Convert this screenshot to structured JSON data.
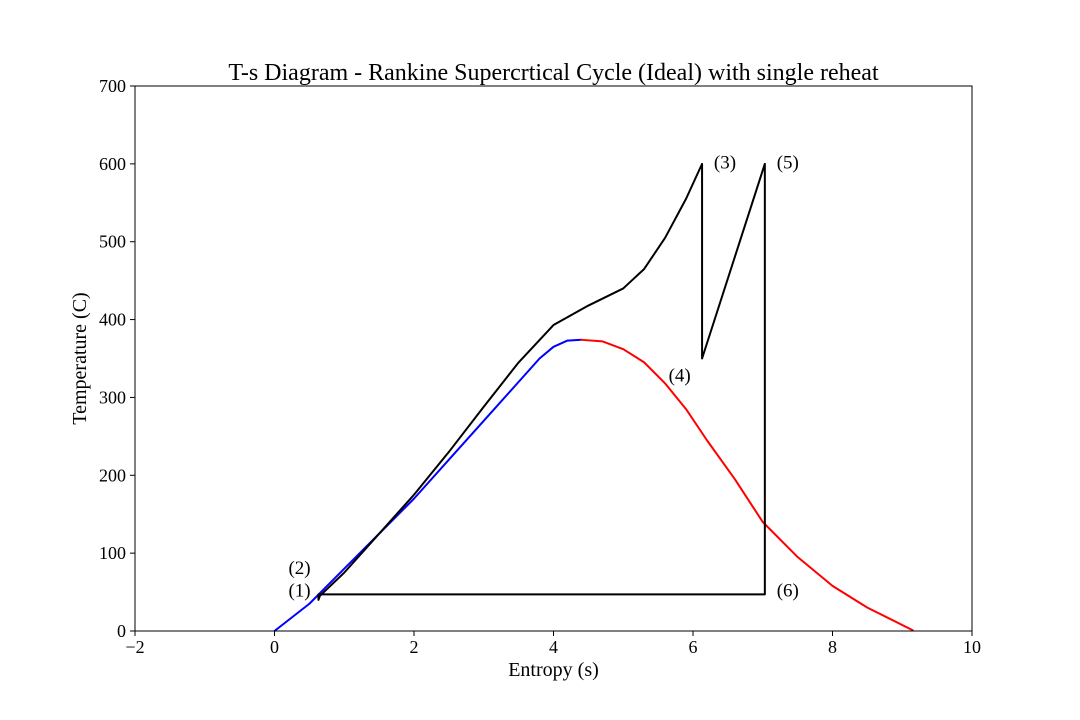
{
  "chart_data": {
    "type": "line",
    "title": "T-s Diagram - Rankine Supercrtical Cycle (Ideal) with single reheat",
    "xlabel": "Entropy (s)",
    "ylabel": "Temperature (C)",
    "xlim": [
      -2,
      10
    ],
    "ylim": [
      0,
      700
    ],
    "xticks": [
      "−2",
      "0",
      "2",
      "4",
      "6",
      "8",
      "10"
    ],
    "xtick_values": [
      -2,
      0,
      2,
      4,
      6,
      8,
      10
    ],
    "yticks": [
      "0",
      "100",
      "200",
      "300",
      "400",
      "500",
      "600",
      "700"
    ],
    "ytick_values": [
      0,
      100,
      200,
      300,
      400,
      500,
      600,
      700
    ],
    "grid": false,
    "series": [
      {
        "color": "#0000ff",
        "points": [
          [
            0,
            0
          ],
          [
            0.5,
            35
          ],
          [
            1.0,
            80
          ],
          [
            1.5,
            125
          ],
          [
            2.0,
            170
          ],
          [
            2.5,
            220
          ],
          [
            3.0,
            270
          ],
          [
            3.5,
            320
          ],
          [
            3.8,
            350
          ],
          [
            4.0,
            365
          ],
          [
            4.2,
            373
          ],
          [
            4.4,
            374
          ]
        ]
      },
      {
        "color": "#ff0000",
        "points": [
          [
            4.4,
            374
          ],
          [
            4.7,
            372
          ],
          [
            5.0,
            362
          ],
          [
            5.3,
            345
          ],
          [
            5.6,
            318
          ],
          [
            5.9,
            285
          ],
          [
            6.2,
            245
          ],
          [
            6.6,
            195
          ],
          [
            7.0,
            140
          ],
          [
            7.5,
            95
          ],
          [
            8.0,
            58
          ],
          [
            8.5,
            30
          ],
          [
            9.15,
            1
          ]
        ]
      },
      {
        "color": "#000000",
        "points": [
          [
            0.63,
            47
          ],
          [
            0.63,
            40
          ],
          [
            0.65,
            45
          ],
          [
            1.0,
            75
          ],
          [
            1.5,
            125
          ],
          [
            2.0,
            175
          ],
          [
            2.5,
            230
          ],
          [
            3.0,
            288
          ],
          [
            3.5,
            345
          ],
          [
            4.0,
            393
          ],
          [
            4.5,
            418
          ],
          [
            5.0,
            440
          ],
          [
            5.3,
            465
          ],
          [
            5.6,
            505
          ],
          [
            5.9,
            555
          ],
          [
            6.13,
            600
          ],
          [
            6.13,
            350
          ],
          [
            7.03,
            600
          ],
          [
            7.03,
            47
          ],
          [
            0.63,
            47
          ]
        ]
      }
    ],
    "annotations": [
      {
        "text": "(1)",
        "x": 0.2,
        "y": 52
      },
      {
        "text": "(2)",
        "x": 0.2,
        "y": 81
      },
      {
        "text": "(3)",
        "x": 6.3,
        "y": 602
      },
      {
        "text": "(4)",
        "x": 5.65,
        "y": 328
      },
      {
        "text": "(5)",
        "x": 7.2,
        "y": 602
      },
      {
        "text": "(6)",
        "x": 7.2,
        "y": 52
      }
    ]
  }
}
